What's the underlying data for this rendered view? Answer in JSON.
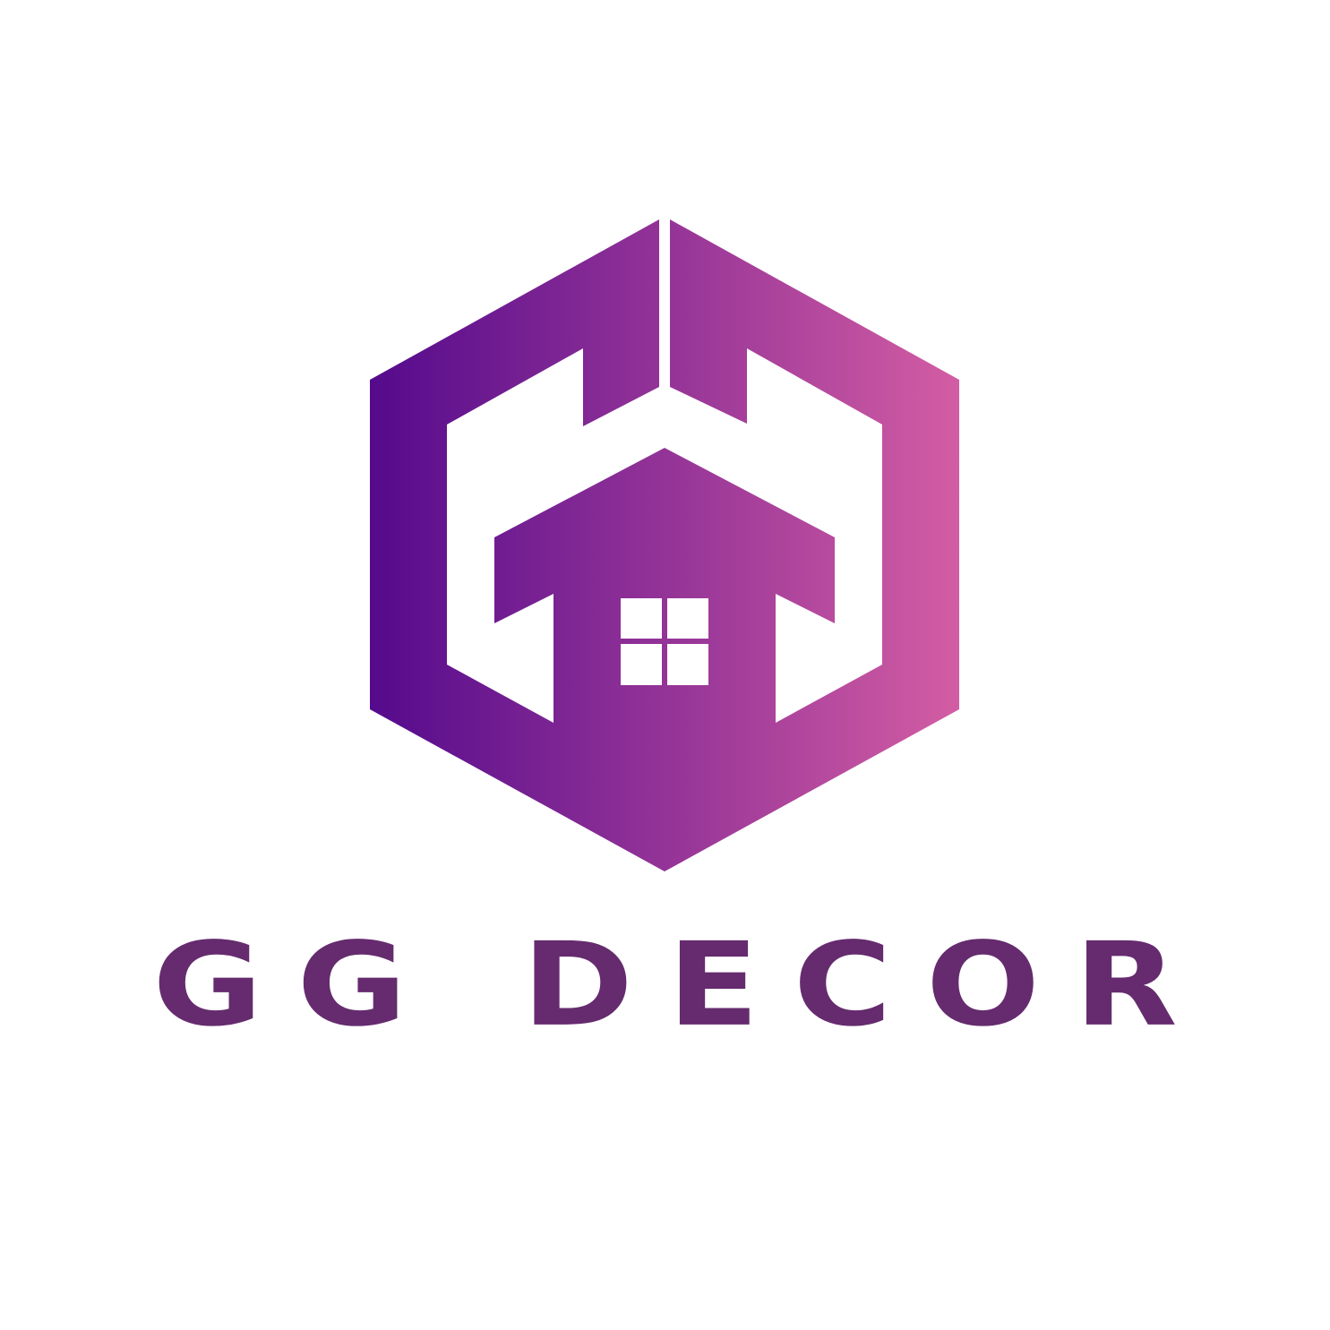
{
  "brand": {
    "name": "GG DECOR",
    "text_color": "#652b6e",
    "gradient_start": "#540a8c",
    "gradient_end": "#d35da3",
    "mark_icon": "hexagon-house-icon",
    "window_icon": "four-pane-window-icon"
  }
}
